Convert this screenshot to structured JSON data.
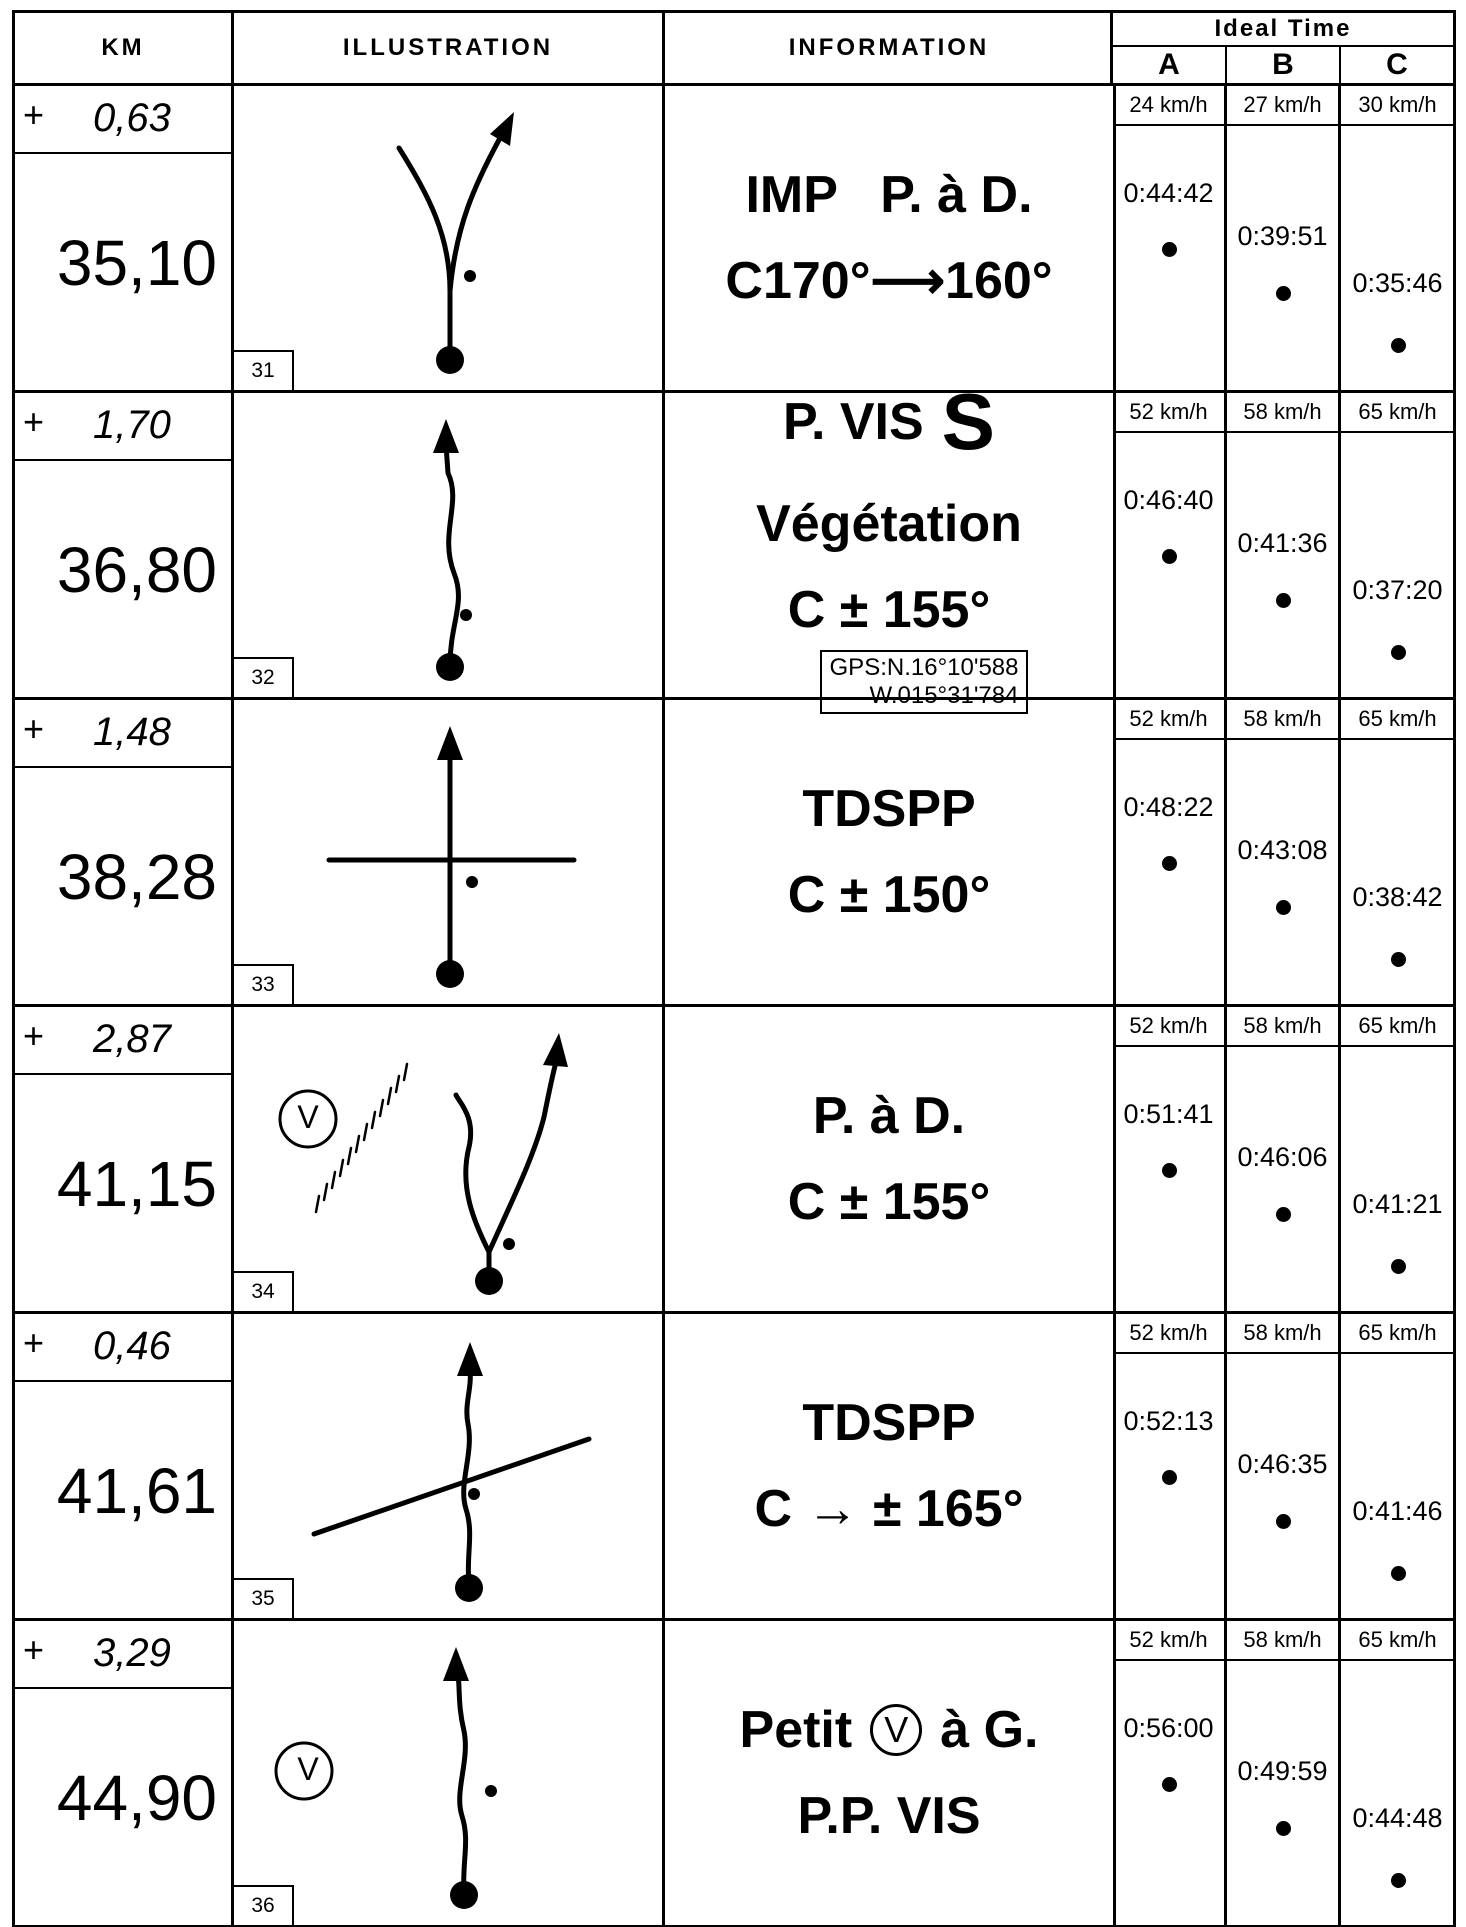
{
  "header": {
    "km": "KM",
    "illustration": "ILLUSTRATION",
    "information": "INFORMATION",
    "ideal_time": "Ideal Time",
    "columns": [
      "A",
      "B",
      "C"
    ]
  },
  "rows": [
    {
      "delta_sign": "+",
      "delta": "0,63",
      "km": "35,10",
      "number": "31",
      "info": [
        [
          "IMP   P. à D."
        ],
        [
          "C170°⟶160°"
        ]
      ],
      "speeds": [
        "24 km/h",
        "27 km/h",
        "30 km/h"
      ],
      "times": [
        "0:44:42",
        "0:39:51",
        "0:35:46"
      ]
    },
    {
      "delta_sign": "+",
      "delta": "1,70",
      "km": "36,80",
      "number": "32",
      "info": [
        [
          "P. VIS",
          "S"
        ],
        [
          "Végétation"
        ],
        [
          "C ± 155°"
        ]
      ],
      "gps": [
        "GPS:N.16°10'588",
        "W.015°31'784"
      ],
      "speeds": [
        "52 km/h",
        "58 km/h",
        "65 km/h"
      ],
      "times": [
        "0:46:40",
        "0:41:36",
        "0:37:20"
      ]
    },
    {
      "delta_sign": "+",
      "delta": "1,48",
      "km": "38,28",
      "number": "33",
      "info": [
        [
          "TDSPP"
        ],
        [
          "C ± 150°"
        ]
      ],
      "speeds": [
        "52 km/h",
        "58 km/h",
        "65 km/h"
      ],
      "times": [
        "0:48:22",
        "0:43:08",
        "0:38:42"
      ]
    },
    {
      "delta_sign": "+",
      "delta": "2,87",
      "km": "41,15",
      "number": "34",
      "info": [
        [
          "P. à D."
        ],
        [
          "C ± 155°"
        ]
      ],
      "illustration_label": "V",
      "speeds": [
        "52 km/h",
        "58 km/h",
        "65 km/h"
      ],
      "times": [
        "0:51:41",
        "0:46:06",
        "0:41:21"
      ]
    },
    {
      "delta_sign": "+",
      "delta": "0,46",
      "km": "41,61",
      "number": "35",
      "info": [
        [
          "TDSPP"
        ],
        [
          "C → ± 165°"
        ]
      ],
      "speeds": [
        "52 km/h",
        "58 km/h",
        "65 km/h"
      ],
      "times": [
        "0:52:13",
        "0:46:35",
        "0:41:46"
      ]
    },
    {
      "delta_sign": "+",
      "delta": "3,29",
      "km": "44,90",
      "number": "36",
      "info": [
        [
          "Petit",
          "V",
          "à G."
        ],
        [
          "P.P. VIS"
        ]
      ],
      "illustration_label": "V",
      "speeds": [
        "52 km/h",
        "58 km/h",
        "65 km/h"
      ],
      "times": [
        "0:56:00",
        "0:49:59",
        "0:44:48"
      ]
    }
  ]
}
